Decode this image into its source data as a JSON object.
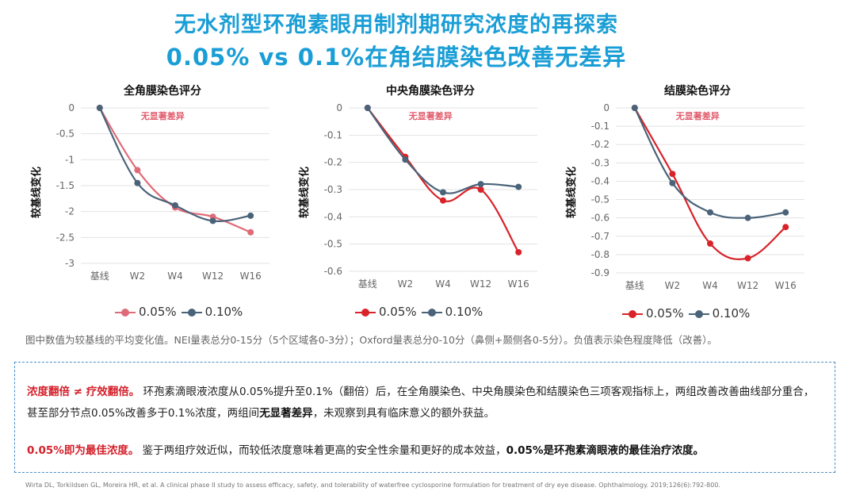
{
  "title": {
    "line1": "无水剂型环孢素眼用制剂期研究浓度的再探索",
    "line2": "0.05% vs 0.1%在角结膜染色改善无差异"
  },
  "colors": {
    "title": "#1a9ed6",
    "series_005": "#d8232a",
    "series_010": "#4a6379",
    "series_005_light": "#e06b78",
    "annotation": "#e05a6a",
    "emphasis": "#d4202a",
    "box_border": "#4a8fc8"
  },
  "chart_data": [
    {
      "type": "line",
      "title": "全角膜染色评分",
      "ylabel": "较基线变化",
      "annotation": "无显著差异",
      "categories": [
        "基线",
        "W2",
        "W4",
        "W12",
        "W16"
      ],
      "ylim": [
        -3,
        0
      ],
      "yticks": [
        0,
        -0.5,
        -1,
        -1.5,
        -2,
        -2.5,
        -3
      ],
      "ytick_labels": [
        "0",
        "-0.5",
        "-1",
        "-1.5",
        "-2",
        "-2.5",
        "-3"
      ],
      "grid": true,
      "legend_position": "bottom",
      "series": [
        {
          "name": "0.05%",
          "color": "#e06b78",
          "values": [
            0,
            -1.2,
            -1.92,
            -2.1,
            -2.4
          ]
        },
        {
          "name": "0.10%",
          "color": "#4a6379",
          "values": [
            0,
            -1.45,
            -1.88,
            -2.18,
            -2.08
          ]
        }
      ]
    },
    {
      "type": "line",
      "title": "中央角膜染色评分",
      "ylabel": "较基线变化",
      "annotation": "无显著差异",
      "categories": [
        "基线",
        "W2",
        "W4",
        "W12",
        "W16"
      ],
      "ylim": [
        -0.6,
        0
      ],
      "yticks": [
        0,
        -0.1,
        -0.2,
        -0.3,
        -0.4,
        -0.5,
        -0.6
      ],
      "ytick_labels": [
        "0",
        "-0.1",
        "-0.2",
        "-0.3",
        "-0.4",
        "-0.5",
        "-0.6"
      ],
      "grid": true,
      "legend_position": "bottom",
      "series": [
        {
          "name": "0.05%",
          "color": "#d8232a",
          "values": [
            0,
            -0.18,
            -0.34,
            -0.3,
            -0.53
          ]
        },
        {
          "name": "0.10%",
          "color": "#4a6379",
          "values": [
            0,
            -0.19,
            -0.31,
            -0.28,
            -0.29
          ]
        }
      ]
    },
    {
      "type": "line",
      "title": "结膜染色评分",
      "ylabel": "较基线变化",
      "annotation": "无显著差异",
      "categories": [
        "基线",
        "W2",
        "W4",
        "W12",
        "W16"
      ],
      "ylim": [
        -0.9,
        0
      ],
      "yticks": [
        0,
        -0.1,
        -0.2,
        -0.3,
        -0.4,
        -0.5,
        -0.6,
        -0.7,
        -0.8,
        -0.9
      ],
      "ytick_labels": [
        "0",
        "-0.1",
        "-0.2",
        "-0.3",
        "-0.4",
        "-0.5",
        "-0.6",
        "-0.7",
        "-0.8",
        "-0.9"
      ],
      "grid": true,
      "legend_position": "bottom",
      "series": [
        {
          "name": "0.05%",
          "color": "#d8232a",
          "values": [
            0,
            -0.36,
            -0.74,
            -0.82,
            -0.65
          ]
        },
        {
          "name": "0.10%",
          "color": "#4a6379",
          "values": [
            0,
            -0.41,
            -0.57,
            -0.6,
            -0.57
          ]
        }
      ]
    }
  ],
  "footnote": "图中数值为较基线的平均变化值。NEI量表总分0-15分（5个区域各0-3分）；Oxford量表总分0-10分（鼻侧+颞侧各0-5分）。负值表示染色程度降低（改善）。",
  "conclusion": {
    "p1_lead": "浓度翻倍 ≠ 疗效翻倍。",
    "p1_text_a": " 环孢素滴眼液浓度从0.05%提升至0.1%（翻倍）后，在全角膜染色、中央角膜染色和结膜染色三项客观指标上，两组改善改善曲线部分重合，甚至部分节点0.05%改善多于0.1%浓度，两组间",
    "p1_bold": "无显著差异",
    "p1_text_b": "，未观察到具有临床意义的额外获益。",
    "p2_lead": "0.05%即为最佳浓度。",
    "p2_text_a": " 鉴于两组疗效近似，而较低浓度意味着更高的安全性余量和更好的成本效益，",
    "p2_bold": "0.05%是环孢素滴眼液的最佳治疗浓度。"
  },
  "citation": "Wirta DL, Torkildsen GL, Moreira HR, et al. A clinical phase II study to assess efficacy, safety, and tolerability of waterfree cyclosporine formulation for treatment of dry eye disease. Ophthalmology. 2019;126(6):792-800."
}
